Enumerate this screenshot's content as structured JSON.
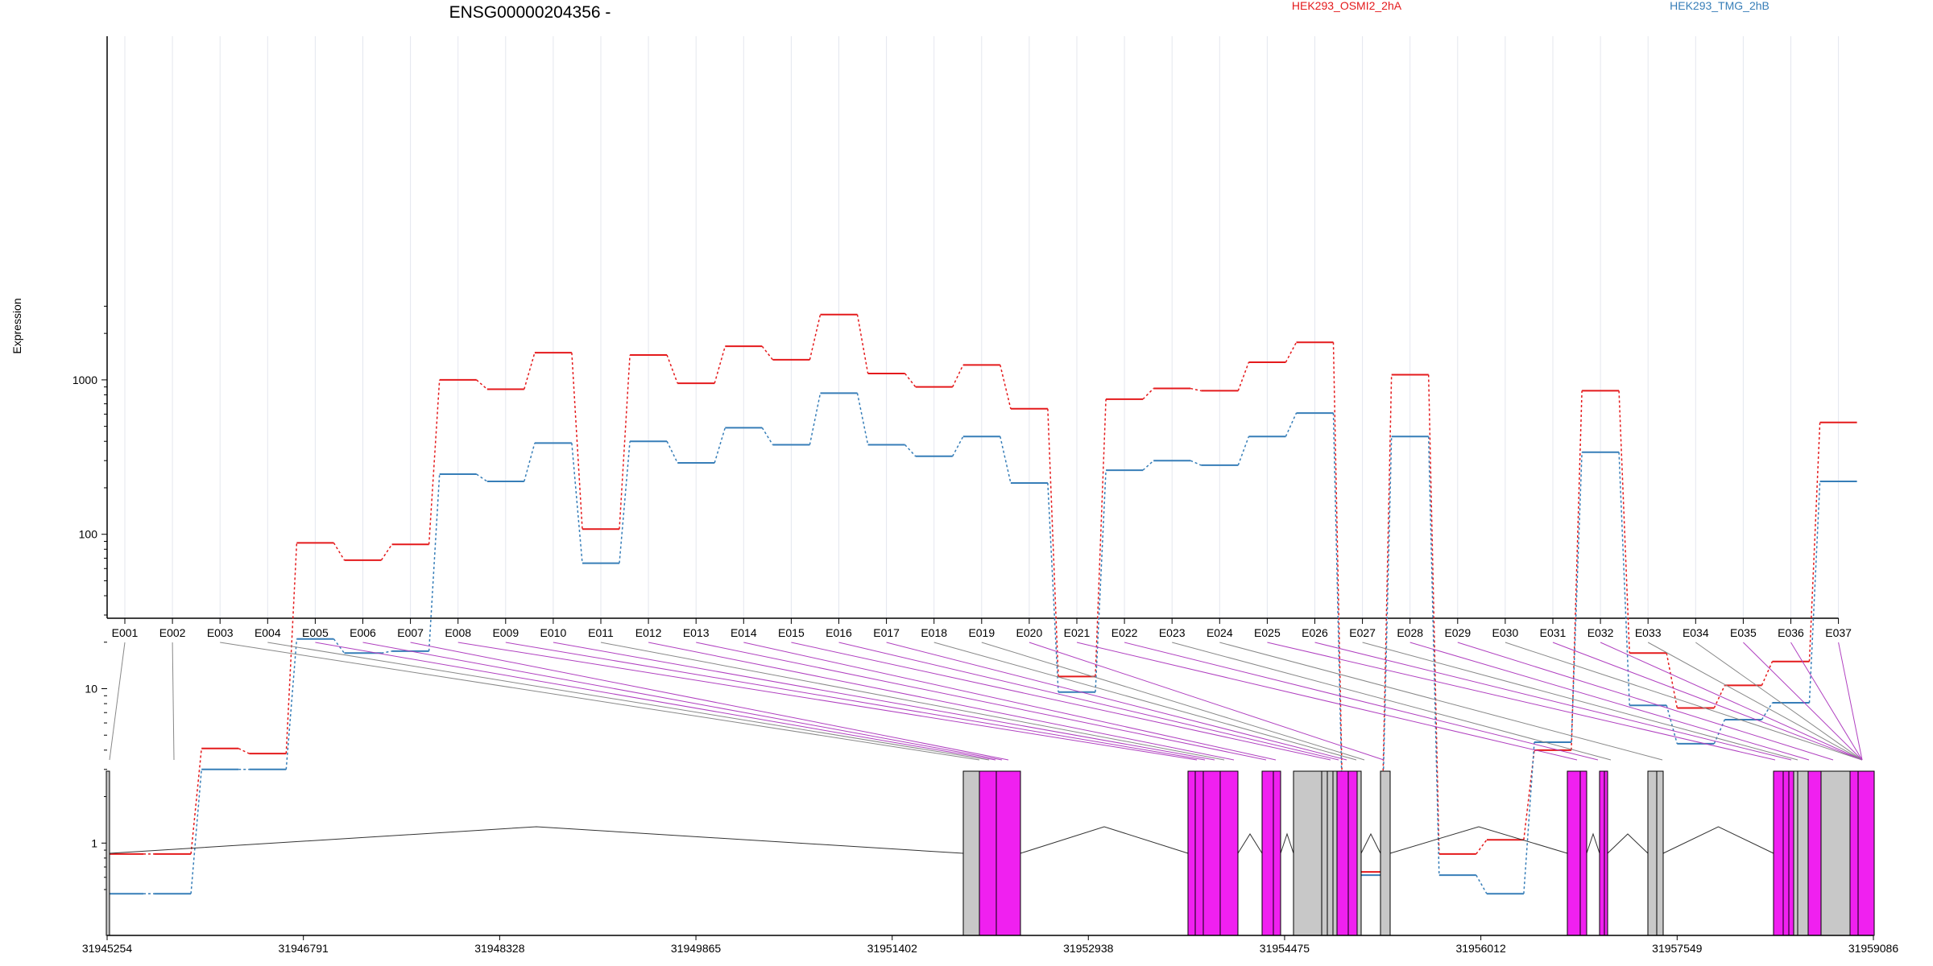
{
  "chart_data": {
    "type": "line",
    "title": "ENSG00000204356 -",
    "ylabel": "Expression",
    "xlabel": "",
    "y_scale": "log",
    "ylim": [
      0.5,
      3500
    ],
    "y_ticks": [
      1,
      10,
      100,
      1000
    ],
    "categories": [
      "E001",
      "E002",
      "E003",
      "E004",
      "E005",
      "E006",
      "E007",
      "E008",
      "E009",
      "E010",
      "E011",
      "E012",
      "E013",
      "E014",
      "E015",
      "E016",
      "E017",
      "E018",
      "E019",
      "E020",
      "E021",
      "E022",
      "E023",
      "E024",
      "E025",
      "E026",
      "E027",
      "E028",
      "E029",
      "E030",
      "E031",
      "E032",
      "E033",
      "E034",
      "E035",
      "E036",
      "E037"
    ],
    "legend_position": "top-right",
    "series": [
      {
        "name": "HEK293_OSMI2_2hA",
        "color": "#e41a1c",
        "values": [
          0.85,
          0.85,
          4.1,
          3.8,
          88,
          68,
          86,
          1000,
          870,
          1500,
          108,
          1450,
          950,
          1650,
          1350,
          2650,
          1100,
          900,
          1250,
          650,
          12,
          750,
          880,
          850,
          1300,
          1750,
          0.65,
          1080,
          0.85,
          1.05,
          4.0,
          850,
          17,
          7.5,
          10.5,
          15,
          530
        ]
      },
      {
        "name": "HEK293_TMG_2hB",
        "color": "#377eb8",
        "values": [
          0.47,
          0.47,
          3.0,
          3.0,
          21,
          17,
          17.5,
          245,
          220,
          390,
          65,
          400,
          290,
          490,
          380,
          820,
          380,
          320,
          430,
          215,
          9.5,
          260,
          300,
          280,
          430,
          610,
          0.62,
          430,
          0.62,
          0.47,
          4.5,
          340,
          7.8,
          4.4,
          6.3,
          8.1,
          220
        ]
      }
    ],
    "gene_model": {
      "coord_ticks": [
        "31945254",
        "31946791",
        "31948328",
        "31949865",
        "31951402",
        "31952938",
        "31954475",
        "31956012",
        "31957549",
        "31959086"
      ],
      "range": [
        31945254,
        31959086
      ],
      "exon_color_tested": "#f020f0",
      "exon_color_other": "#c8c8c8"
    }
  }
}
